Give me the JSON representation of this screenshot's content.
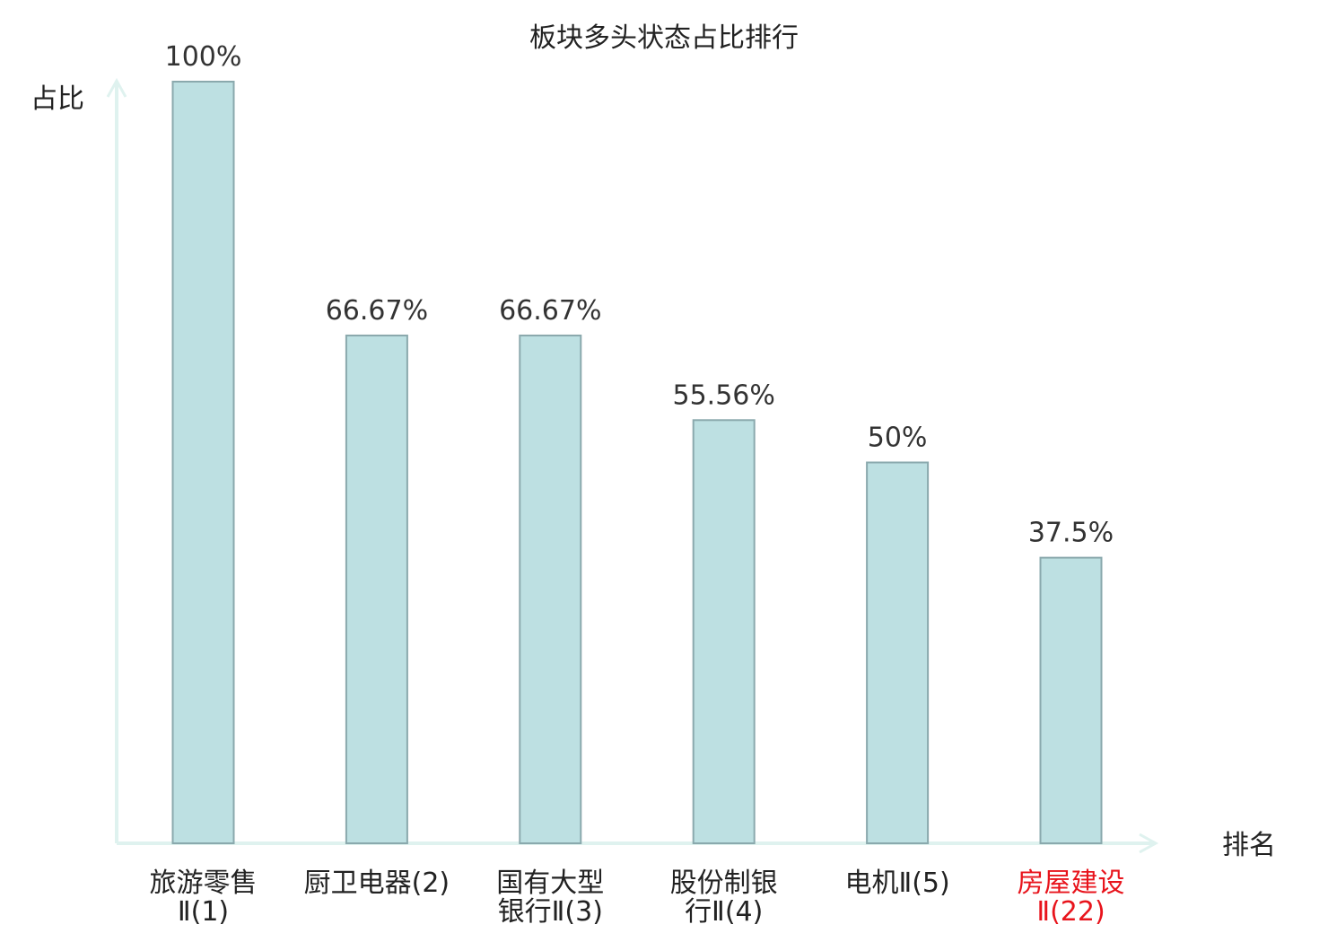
{
  "chart_data": {
    "type": "bar",
    "title": "板块多头状态占比排行",
    "xlabel": "排名",
    "ylabel": "占比",
    "ylim": [
      0,
      100
    ],
    "grid": false,
    "categories": [
      {
        "lines": [
          "旅游零售",
          "Ⅱ(1)"
        ],
        "highlight": false
      },
      {
        "lines": [
          "厨卫电器(2)"
        ],
        "highlight": false
      },
      {
        "lines": [
          "国有大型",
          "银行Ⅱ(3)"
        ],
        "highlight": false
      },
      {
        "lines": [
          "股份制银",
          "行Ⅱ(4)"
        ],
        "highlight": false
      },
      {
        "lines": [
          "电机Ⅱ(5)"
        ],
        "highlight": false
      },
      {
        "lines": [
          "房屋建设",
          "Ⅱ(22)"
        ],
        "highlight": true
      }
    ],
    "values": [
      100,
      66.67,
      66.67,
      55.56,
      50,
      37.5
    ],
    "value_labels": [
      "100%",
      "66.67%",
      "66.67%",
      "55.56%",
      "50%",
      "37.5%"
    ]
  },
  "colors": {
    "bar_fill": "#bde0e2",
    "bar_stroke": "#8aa9ad",
    "axis": "#dff2ef",
    "highlight": "#e8141c",
    "text": "#222222"
  }
}
